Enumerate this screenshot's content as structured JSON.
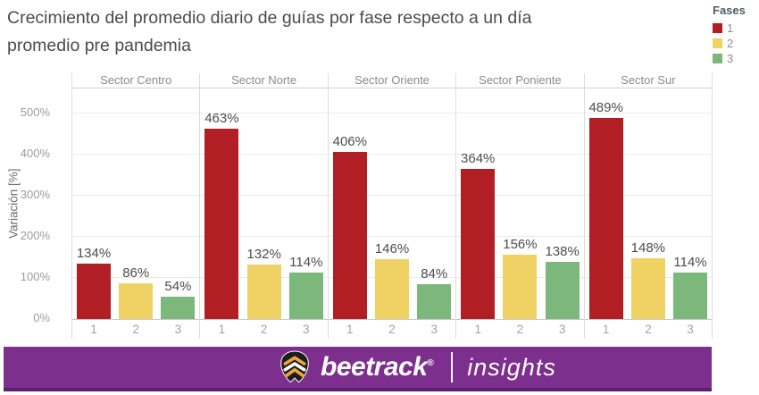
{
  "page": {
    "title_lines": [
      "Crecimiento del promedio diario de guías por fase respecto a un día",
      "promedio pre pandemia"
    ]
  },
  "legend": {
    "title": "Fases",
    "items": [
      {
        "label": "1",
        "color": "#b11f24"
      },
      {
        "label": "2",
        "color": "#f0d264"
      },
      {
        "label": "3",
        "color": "#7cb87b"
      }
    ]
  },
  "chart_data": {
    "type": "bar",
    "title": "Crecimiento del promedio diario de guías por fase respecto a un día promedio pre pandemia",
    "ylabel": "Variación [%]",
    "ylim": [
      0,
      560
    ],
    "yticks": [
      {
        "value": 0,
        "label": "0%"
      },
      {
        "value": 100,
        "label": "100%"
      },
      {
        "value": 200,
        "label": "200%"
      },
      {
        "value": 300,
        "label": "300%"
      },
      {
        "value": 400,
        "label": "400%"
      },
      {
        "value": 500,
        "label": "500%"
      }
    ],
    "grid": true,
    "legend_position": "top-right",
    "categories": [
      "Sector Centro",
      "Sector Norte",
      "Sector Oriente",
      "Sector Poniente",
      "Sector Sur"
    ],
    "bar_labels": [
      "1",
      "2",
      "3"
    ],
    "value_suffix": "%",
    "series": [
      {
        "name": "1",
        "color": "#b11f24",
        "values": [
          134,
          463,
          406,
          364,
          489
        ]
      },
      {
        "name": "2",
        "color": "#f0d264",
        "values": [
          86,
          132,
          146,
          156,
          148
        ]
      },
      {
        "name": "3",
        "color": "#7cb87b",
        "values": [
          54,
          114,
          84,
          138,
          114
        ]
      }
    ]
  },
  "footer": {
    "brand": "beetrack",
    "registered": "®",
    "product": "insights",
    "background": "#7d2f8d",
    "bee_body_color": "#1d1d1b",
    "bee_accent_color": "#eda73c"
  }
}
